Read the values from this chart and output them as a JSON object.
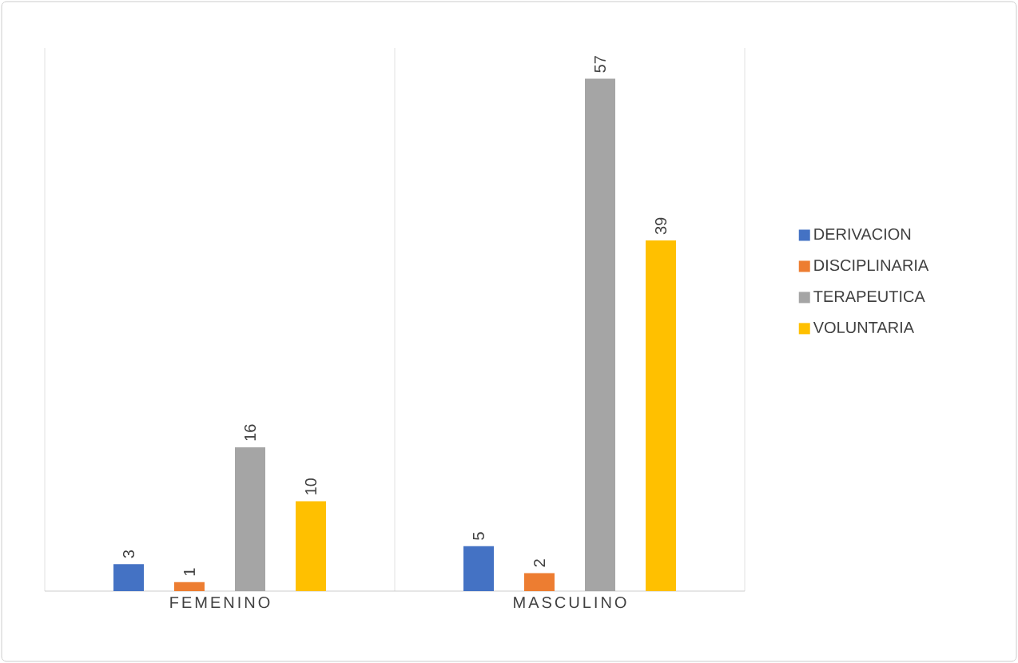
{
  "chart_data": {
    "type": "bar",
    "categories": [
      "FEMENINO",
      "MASCULINO"
    ],
    "series": [
      {
        "name": "DERIVACION",
        "color": "#4472c4",
        "values": [
          3,
          5
        ]
      },
      {
        "name": "DISCIPLINARIA",
        "color": "#ed7d31",
        "values": [
          1,
          2
        ]
      },
      {
        "name": "TERAPEUTICA",
        "color": "#a5a5a5",
        "values": [
          16,
          57
        ]
      },
      {
        "name": "VOLUNTARIA",
        "color": "#ffc000",
        "values": [
          10,
          39
        ]
      }
    ],
    "data_labels": true,
    "grid": "x",
    "legend": "right"
  }
}
